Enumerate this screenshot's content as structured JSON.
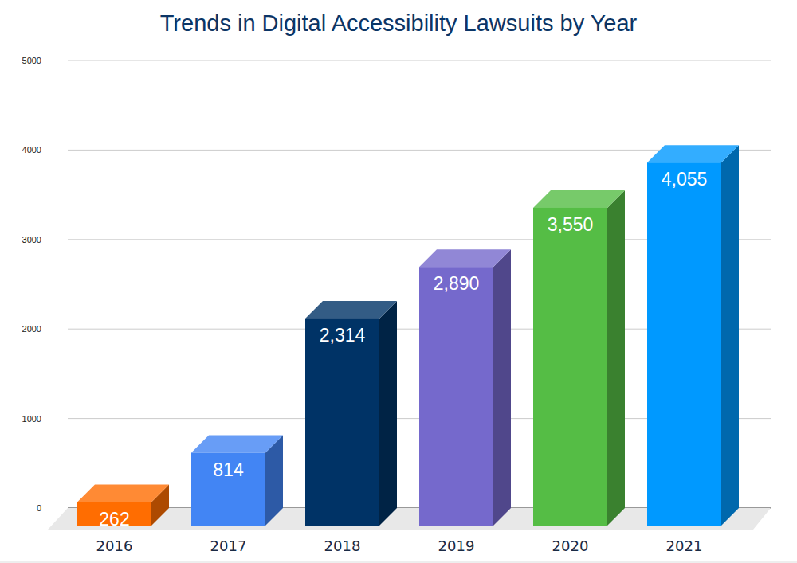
{
  "chart_data": {
    "type": "bar",
    "title": "Trends in Digital Accessibility Lawsuits by Year",
    "categories": [
      "2016",
      "2017",
      "2018",
      "2019",
      "2020",
      "2021"
    ],
    "values": [
      262,
      814,
      2314,
      2890,
      3550,
      4055
    ],
    "value_labels": [
      "262",
      "814",
      "2,314",
      "2,890",
      "3,550",
      "4,055"
    ],
    "colors": [
      "#ff6d01",
      "#4285f4",
      "#003366",
      "#7569cc",
      "#55bd45",
      "#0099ff"
    ],
    "ylim": [
      0,
      5000
    ],
    "yticks": [
      0,
      1000,
      2000,
      3000,
      4000,
      5000
    ],
    "grid": true,
    "data_labels": true
  }
}
